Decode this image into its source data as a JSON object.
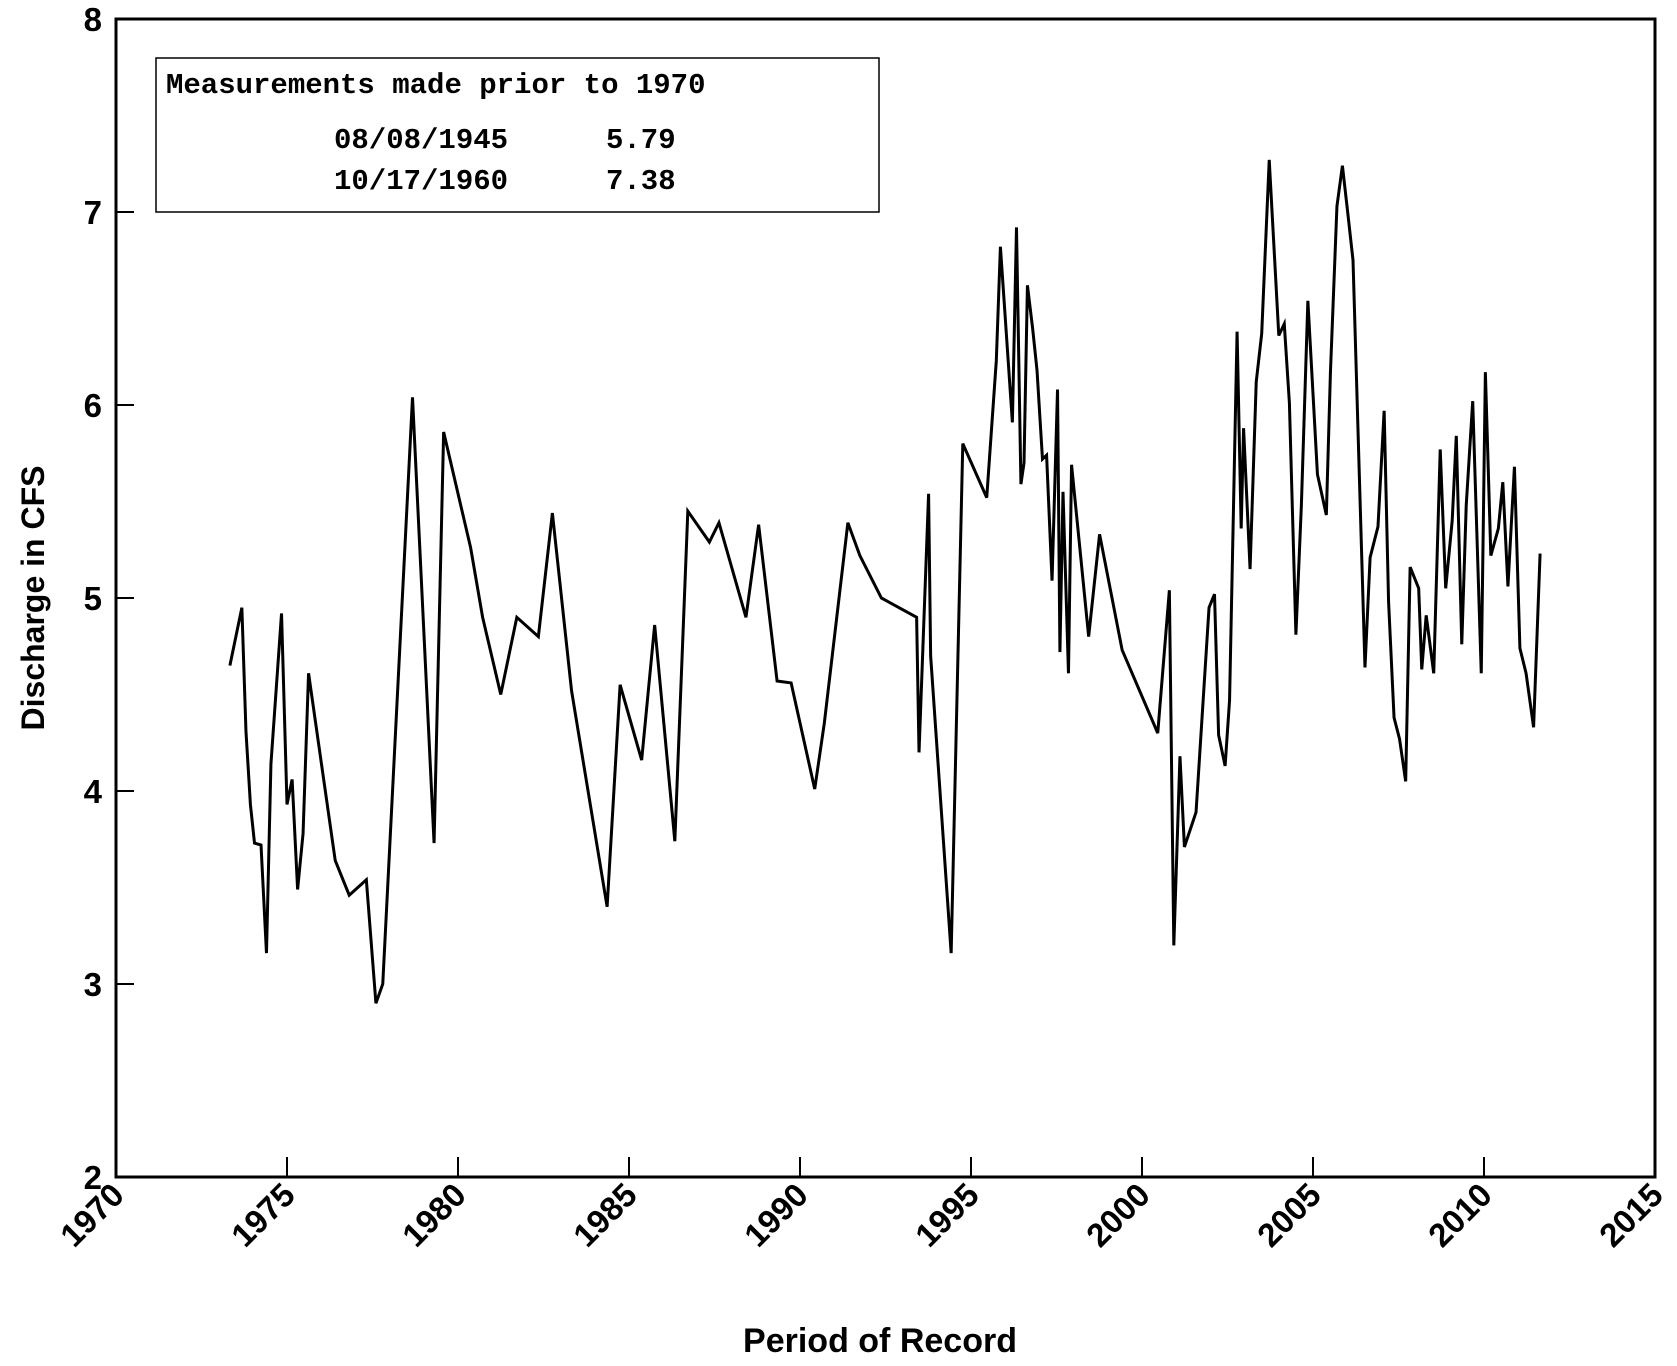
{
  "chart_data": {
    "type": "line",
    "x_label": "Period of Record",
    "y_label": "Discharge in CFS",
    "xlim": [
      1970,
      2015
    ],
    "xticks": [
      1970,
      1975,
      1980,
      1985,
      1990,
      1995,
      2000,
      2005,
      2010,
      2015
    ],
    "ylim": [
      2,
      8
    ],
    "yticks": [
      2,
      3,
      4,
      5,
      6,
      7,
      8
    ],
    "legend": {
      "title": "Measurements made prior to 1970",
      "rows": [
        [
          "08/08/1945",
          5.79
        ],
        [
          "10/17/1960",
          7.38
        ]
      ]
    },
    "series": [
      {
        "color": "#000000",
        "x": [
          1973.33,
          1973.68,
          1973.8,
          1973.93,
          1974.05,
          1974.24,
          1974.4,
          1974.53,
          1974.84,
          1975.0,
          1975.15,
          1975.31,
          1975.47,
          1975.63,
          1976.41,
          1976.82,
          1977.32,
          1977.6,
          1977.8,
          1978.67,
          1979.3,
          1979.58,
          1980.37,
          1980.72,
          1981.25,
          1981.72,
          1982.35,
          1982.76,
          1983.32,
          1984.36,
          1984.74,
          1985.37,
          1985.75,
          1986.34,
          1986.72,
          1987.35,
          1987.63,
          1988.42,
          1988.79,
          1989.33,
          1989.74,
          1990.43,
          1990.71,
          1991.4,
          1991.75,
          1992.38,
          1993.41,
          1993.48,
          1993.76,
          1993.82,
          1994.42,
          1994.76,
          1995.46,
          1995.74,
          1995.86,
          1996.21,
          1996.33,
          1996.46,
          1996.55,
          1996.65,
          1996.8,
          1996.93,
          1997.09,
          1997.21,
          1997.37,
          1997.53,
          1997.6,
          1997.69,
          1997.85,
          1997.94,
          1998.44,
          1998.76,
          1999.42,
          2000.46,
          2000.8,
          2000.93,
          2001.11,
          2001.24,
          2001.58,
          2001.96,
          2002.12,
          2002.24,
          2002.43,
          2002.56,
          2002.78,
          2002.9,
          2002.97,
          2003.16,
          2003.34,
          2003.5,
          2003.72,
          2004.0,
          2004.16,
          2004.31,
          2004.5,
          2004.66,
          2004.85,
          2005.13,
          2005.39,
          2005.51,
          2005.7,
          2005.86,
          2006.02,
          2006.17,
          2006.52,
          2006.67,
          2006.9,
          2007.08,
          2007.21,
          2007.37,
          2007.53,
          2007.71,
          2007.84,
          2008.09,
          2008.18,
          2008.31,
          2008.53,
          2008.72,
          2008.88,
          2009.07,
          2009.19,
          2009.35,
          2009.48,
          2009.67,
          2009.92,
          2010.04,
          2010.2,
          2010.42,
          2010.55,
          2010.7,
          2010.89,
          2011.05,
          2011.23,
          2011.45,
          2011.64
        ],
        "values": [
          4.65,
          4.95,
          4.31,
          3.93,
          3.73,
          3.72,
          3.16,
          4.14,
          4.92,
          3.93,
          4.06,
          3.49,
          3.78,
          4.61,
          3.64,
          3.46,
          3.54,
          2.9,
          3.0,
          6.04,
          3.73,
          5.86,
          5.26,
          4.9,
          4.5,
          4.9,
          4.8,
          5.44,
          4.52,
          3.4,
          4.55,
          4.16,
          4.86,
          3.74,
          5.45,
          5.29,
          5.39,
          4.9,
          5.38,
          4.57,
          4.56,
          4.01,
          4.35,
          5.39,
          5.22,
          5.0,
          4.9,
          4.2,
          5.54,
          4.7,
          3.16,
          5.8,
          5.52,
          6.23,
          6.82,
          5.91,
          6.92,
          5.59,
          5.7,
          6.62,
          6.4,
          6.18,
          5.72,
          5.74,
          5.09,
          6.08,
          4.72,
          5.55,
          4.61,
          5.69,
          4.8,
          5.33,
          4.73,
          4.3,
          5.04,
          3.2,
          4.18,
          3.71,
          3.89,
          4.95,
          5.02,
          4.29,
          4.13,
          4.47,
          6.38,
          5.36,
          5.88,
          5.15,
          6.12,
          6.37,
          7.27,
          6.36,
          6.42,
          6.01,
          4.81,
          5.48,
          6.54,
          5.64,
          5.43,
          6.17,
          7.03,
          7.24,
          6.99,
          6.75,
          4.64,
          5.21,
          5.37,
          5.97,
          4.98,
          4.38,
          4.27,
          4.05,
          5.16,
          5.05,
          4.63,
          4.91,
          4.61,
          5.77,
          5.05,
          5.4,
          5.84,
          4.76,
          5.48,
          6.02,
          4.61,
          6.17,
          5.22,
          5.36,
          5.6,
          5.06,
          5.68,
          4.74,
          4.61,
          4.33,
          5.23
        ]
      }
    ]
  }
}
